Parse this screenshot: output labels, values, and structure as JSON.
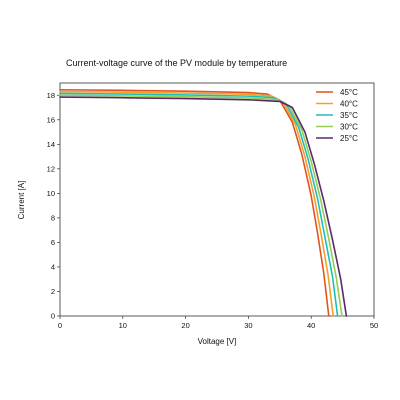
{
  "chart_data": {
    "type": "line",
    "title": "Current-voltage curve of the PV module by temperature",
    "xlabel": "Voltage [V]",
    "ylabel": "Current [A]",
    "xlim": [
      0,
      50
    ],
    "ylim": [
      0,
      19
    ],
    "x_ticks": [
      0,
      10,
      20,
      30,
      40,
      50
    ],
    "y_ticks": [
      0,
      2,
      4,
      6,
      8,
      10,
      12,
      14,
      16,
      18
    ],
    "grid": false,
    "legend_position": "top-right",
    "series": [
      {
        "name": "45°C",
        "color": "#e2541d",
        "points": [
          [
            0,
            18.45
          ],
          [
            10,
            18.4
          ],
          [
            20,
            18.33
          ],
          [
            30,
            18.22
          ],
          [
            33,
            18.1
          ],
          [
            35,
            17.6
          ],
          [
            37,
            15.8
          ],
          [
            38.5,
            13.2
          ],
          [
            40,
            9.8
          ],
          [
            41,
            6.8
          ],
          [
            42,
            3.5
          ],
          [
            42.8,
            0
          ]
        ]
      },
      {
        "name": "40°C",
        "color": "#f2a12b",
        "points": [
          [
            0,
            18.3
          ],
          [
            10,
            18.25
          ],
          [
            20,
            18.18
          ],
          [
            30,
            18.08
          ],
          [
            33.5,
            17.95
          ],
          [
            35.5,
            17.45
          ],
          [
            37.5,
            15.6
          ],
          [
            39,
            13.0
          ],
          [
            40.5,
            9.7
          ],
          [
            41.6,
            6.6
          ],
          [
            42.7,
            3.3
          ],
          [
            43.5,
            0
          ]
        ]
      },
      {
        "name": "35°C",
        "color": "#1ebdbd",
        "points": [
          [
            0,
            18.15
          ],
          [
            10,
            18.1
          ],
          [
            20,
            18.03
          ],
          [
            30,
            17.93
          ],
          [
            34,
            17.8
          ],
          [
            36,
            17.3
          ],
          [
            38,
            15.4
          ],
          [
            39.5,
            12.8
          ],
          [
            41,
            9.6
          ],
          [
            42.2,
            6.4
          ],
          [
            43.4,
            3.2
          ],
          [
            44.2,
            0
          ]
        ]
      },
      {
        "name": "30°C",
        "color": "#92cf4e",
        "points": [
          [
            0,
            18.0
          ],
          [
            10,
            17.95
          ],
          [
            20,
            17.88
          ],
          [
            30,
            17.78
          ],
          [
            34.5,
            17.65
          ],
          [
            36.5,
            17.15
          ],
          [
            38.5,
            15.2
          ],
          [
            40,
            12.6
          ],
          [
            41.5,
            9.5
          ],
          [
            42.8,
            6.3
          ],
          [
            44,
            3.1
          ],
          [
            44.9,
            0
          ]
        ]
      },
      {
        "name": "25°C",
        "color": "#5a2a66",
        "points": [
          [
            0,
            17.85
          ],
          [
            10,
            17.8
          ],
          [
            20,
            17.73
          ],
          [
            30,
            17.63
          ],
          [
            35,
            17.5
          ],
          [
            37,
            17.0
          ],
          [
            39,
            15.0
          ],
          [
            40.5,
            12.4
          ],
          [
            42,
            9.4
          ],
          [
            43.4,
            6.2
          ],
          [
            44.7,
            3.0
          ],
          [
            45.6,
            0
          ]
        ]
      }
    ]
  }
}
